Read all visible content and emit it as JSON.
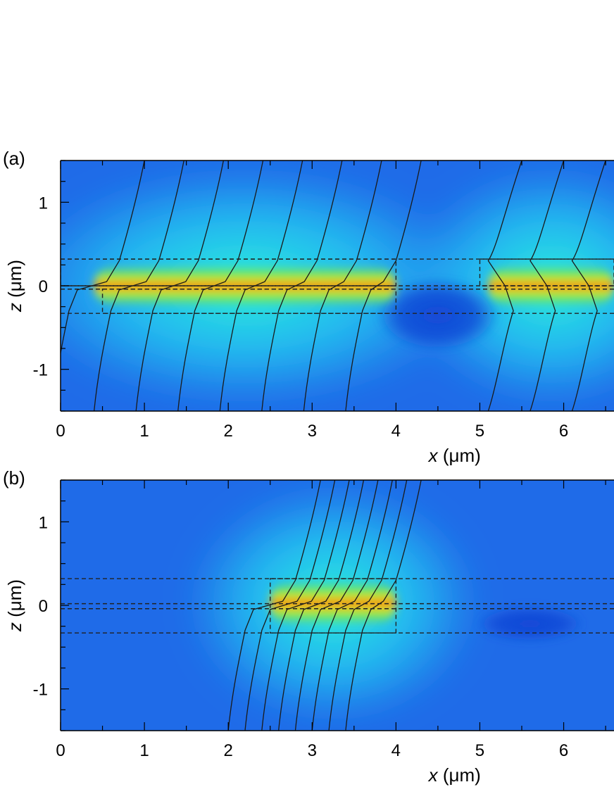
{
  "colors": {
    "background": "#1f6be8",
    "field_mid": "#23c6f2",
    "field_high": "#2bf0d8",
    "core_green": "#7ee84a",
    "core_yellow": "#f5e51b",
    "core_red": "#e82a10",
    "low": "#1348d6",
    "contour": "#1a1a1a",
    "guide": "#222222"
  },
  "chart_data": [
    {
      "type": "heatmap",
      "panel_label": "(a)",
      "xlabel_var": "x",
      "xlabel_unit": "(μm)",
      "ylabel_var": "z",
      "ylabel_unit": "(μm)",
      "xlim": [
        0,
        6.6
      ],
      "ylim": [
        -1.5,
        1.5
      ],
      "xticks": [
        0,
        1,
        2,
        3,
        4,
        5,
        6
      ],
      "yticks": [
        1,
        0,
        -1
      ],
      "guide_lines_z": [
        0.32,
        0.0,
        -0.04,
        -0.33
      ],
      "waveguide_segments": [
        {
          "x0": 0.0,
          "x1": 4.0,
          "z0": 0.0,
          "z1": 0.32
        },
        {
          "x0": 0.5,
          "x1": 4.0,
          "z0": -0.33,
          "z1": -0.04
        },
        {
          "x0": 5.0,
          "x1": 6.6,
          "z0": 0.0,
          "z1": 0.32
        }
      ],
      "hotspots": [
        {
          "x0": 0.4,
          "x1": 4.0,
          "z0": -0.06,
          "z1": 0.06
        },
        {
          "x0": 5.1,
          "x1": 6.6,
          "z0": -0.06,
          "z1": 0.06
        }
      ],
      "lowspot": {
        "x": 4.5,
        "z": -0.35,
        "rx": 1.5,
        "rz": 0.45
      }
    },
    {
      "type": "heatmap",
      "panel_label": "(b)",
      "xlabel_var": "x",
      "xlabel_unit": "(μm)",
      "ylabel_var": "z",
      "ylabel_unit": "(μm)",
      "xlim": [
        0,
        6.6
      ],
      "ylim": [
        -1.5,
        1.5
      ],
      "xticks": [
        0,
        1,
        2,
        3,
        4,
        5,
        6
      ],
      "yticks": [
        1,
        0,
        -1
      ],
      "guide_lines_z": [
        0.32,
        0.02,
        -0.04,
        -0.33
      ],
      "waveguide_segments": [
        {
          "x0": 2.5,
          "x1": 4.0,
          "z0": -0.33,
          "z1": 0.32
        }
      ],
      "hotspots": [
        {
          "x0": 2.5,
          "x1": 4.0,
          "z0": -0.05,
          "z1": 0.1
        }
      ],
      "lowspot": {
        "x": 5.6,
        "z": -0.22,
        "rx": 1.3,
        "rz": 0.22
      }
    }
  ]
}
